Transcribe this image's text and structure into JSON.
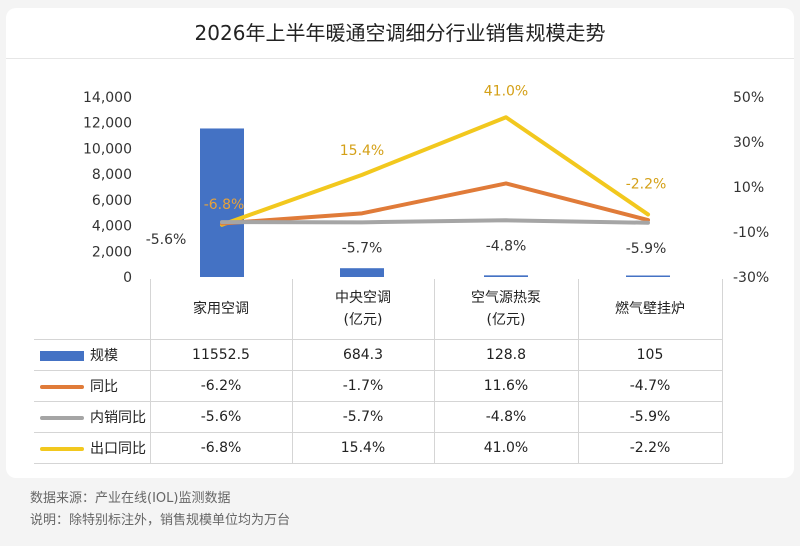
{
  "chart_data": {
    "type": "bar+line",
    "title": "2026年上半年暖通空调细分行业销售规模走势",
    "categories": [
      "家用空调",
      "中央空调\n(亿元)",
      "空气源热泵\n(亿元)",
      "燃气壁挂炉"
    ],
    "left_axis": {
      "ticks": [
        "14,000",
        "12,000",
        "10,000",
        "8,000",
        "6,000",
        "4,000",
        "2,000",
        "0"
      ],
      "ylim": [
        0,
        14000
      ]
    },
    "right_axis": {
      "ticks": [
        "50%",
        "30%",
        "10%",
        "-10%",
        "-30%"
      ],
      "ylim": [
        -30,
        50
      ]
    },
    "series": [
      {
        "name": "规模",
        "kind": "bar",
        "color": "#4472c4",
        "values": [
          11552.5,
          684.3,
          128.8,
          105
        ],
        "display": [
          "11552.5",
          "684.3",
          "128.8",
          "105"
        ]
      },
      {
        "name": "同比",
        "kind": "line",
        "color": "#e07b39",
        "values": [
          -6.2,
          -1.7,
          11.6,
          -4.7
        ],
        "display": [
          "-6.2%",
          "-1.7%",
          "11.6%",
          "-4.7%"
        ]
      },
      {
        "name": "内销同比",
        "kind": "line",
        "color": "#a5a5a5",
        "values": [
          -5.6,
          -5.7,
          -4.8,
          -5.9
        ],
        "display": [
          "-5.6%",
          "-5.7%",
          "-4.8%",
          "-5.9%"
        ]
      },
      {
        "name": "出口同比",
        "kind": "line",
        "color": "#f2c81e",
        "values": [
          -6.8,
          15.4,
          41.0,
          -2.2
        ],
        "display": [
          "-6.8%",
          "15.4%",
          "41.0%",
          "-2.2%"
        ]
      }
    ],
    "point_labels": [
      {
        "series": 3,
        "index": 0,
        "text": "-6.8%",
        "color": "#e6a23c"
      },
      {
        "series": 2,
        "index": 0,
        "text": "-5.6%",
        "color": "#333333"
      },
      {
        "series": 3,
        "index": 1,
        "text": "15.4%",
        "color": "#d4a017"
      },
      {
        "series": 2,
        "index": 1,
        "text": "-5.7%",
        "color": "#333333"
      },
      {
        "series": 3,
        "index": 2,
        "text": "41.0%",
        "color": "#d4a017"
      },
      {
        "series": 2,
        "index": 2,
        "text": "-4.8%",
        "color": "#333333"
      },
      {
        "series": 3,
        "index": 3,
        "text": "-2.2%",
        "color": "#d4a017"
      },
      {
        "series": 2,
        "index": 3,
        "text": "-5.9%",
        "color": "#333333"
      }
    ]
  },
  "footer": {
    "source": "数据来源：产业在线(IOL)监测数据",
    "note": "说明：除特别标注外，销售规模单位均为万台"
  }
}
